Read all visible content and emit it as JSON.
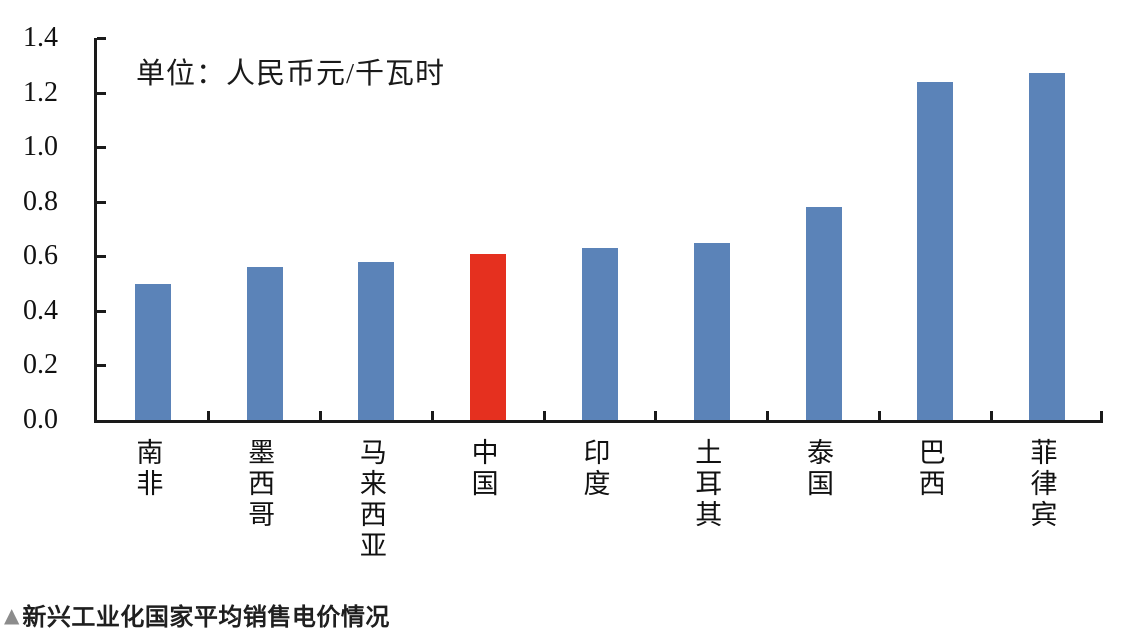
{
  "chart_data": {
    "type": "bar",
    "unit_note": "单位：人民币元/千瓦时",
    "categories": [
      "南非",
      "墨西哥",
      "马来西亚",
      "中国",
      "印度",
      "土耳其",
      "泰国",
      "巴西",
      "菲律宾"
    ],
    "values": [
      0.5,
      0.56,
      0.58,
      0.61,
      0.63,
      0.65,
      0.78,
      1.24,
      1.27
    ],
    "highlight_category": "中国",
    "bar_color": "#5B83B8",
    "highlight_color": "#E5301F",
    "axis_color": "#1a1a1a",
    "ylim": [
      0,
      1.4
    ],
    "ytick_step": 0.2,
    "ytick_labels": [
      "0.0",
      "0.2",
      "0.4",
      "0.6",
      "0.8",
      "1.0",
      "1.2",
      "1.4"
    ],
    "xlabel": "",
    "ylabel": "",
    "grid": "off",
    "legend": "none",
    "x_labels_orientation": "vertical-stacked"
  },
  "caption": {
    "marker": "▲",
    "text": "新兴工业化国家平均销售电价情况"
  }
}
